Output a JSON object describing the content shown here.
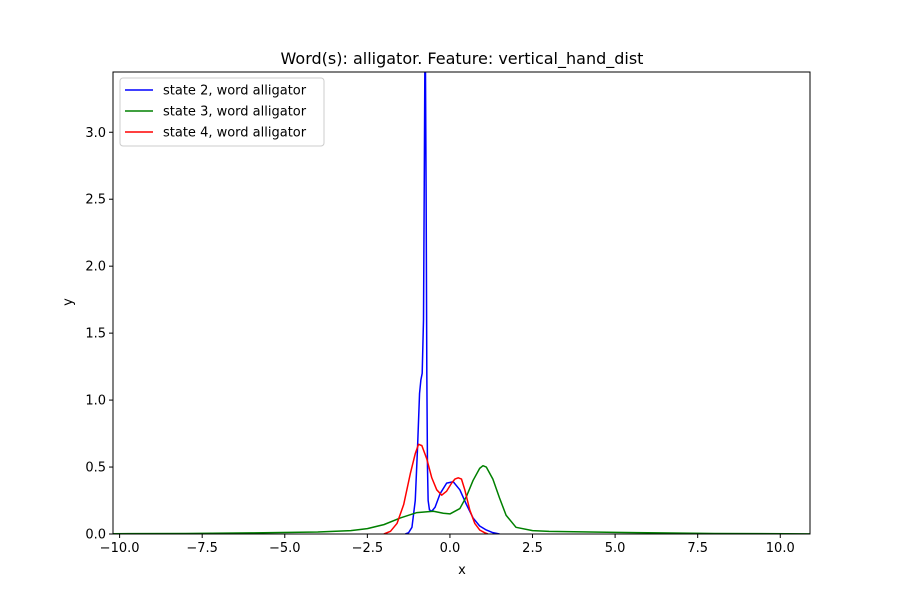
{
  "chart_data": {
    "type": "line",
    "title": "Word(s): alligator. Feature: vertical_hand_dist",
    "xlabel": "x",
    "ylabel": "y",
    "xlim": [
      -10.2,
      10.9
    ],
    "ylim": [
      0,
      3.45
    ],
    "xticks": [
      -10.0,
      -7.5,
      -5.0,
      -2.5,
      0.0,
      2.5,
      5.0,
      7.5,
      10.0
    ],
    "xtick_labels": [
      "−10.0",
      "−7.5",
      "−5.0",
      "−2.5",
      "0.0",
      "2.5",
      "5.0",
      "7.5",
      "10.0"
    ],
    "yticks": [
      0.0,
      0.5,
      1.0,
      1.5,
      2.0,
      2.5,
      3.0
    ],
    "ytick_labels": [
      "0.0",
      "0.5",
      "1.0",
      "1.5",
      "2.0",
      "2.5",
      "3.0"
    ],
    "grid": false,
    "legend_position": "top-left",
    "series": [
      {
        "name": "state 2, word alligator",
        "color": "#0000ff",
        "x": [
          -1.35,
          -1.25,
          -1.15,
          -1.05,
          -0.98,
          -0.92,
          -0.88,
          -0.84,
          -0.8,
          -0.78,
          -0.76,
          -0.74,
          -0.72,
          -0.7,
          -0.68,
          -0.66,
          -0.62,
          -0.55,
          -0.45,
          -0.3,
          -0.1,
          0.1,
          0.3,
          0.5,
          0.7,
          0.9,
          1.1,
          1.3,
          1.5
        ],
        "y": [
          0.0,
          0.01,
          0.05,
          0.25,
          0.65,
          1.05,
          1.15,
          1.2,
          1.6,
          2.5,
          3.45,
          3.45,
          2.5,
          1.2,
          0.5,
          0.25,
          0.18,
          0.17,
          0.2,
          0.3,
          0.38,
          0.39,
          0.33,
          0.22,
          0.12,
          0.06,
          0.03,
          0.01,
          0.0
        ]
      },
      {
        "name": "state 3, word alligator",
        "color": "#008000",
        "x": [
          -10.2,
          -8.0,
          -6.0,
          -4.0,
          -3.0,
          -2.5,
          -2.0,
          -1.5,
          -1.0,
          -0.5,
          -0.2,
          0.0,
          0.3,
          0.5,
          0.7,
          0.9,
          1.0,
          1.1,
          1.3,
          1.5,
          1.7,
          2.0,
          2.5,
          3.0,
          4.0,
          5.0,
          6.0,
          8.0,
          10.9
        ],
        "y": [
          0.002,
          0.004,
          0.008,
          0.015,
          0.025,
          0.04,
          0.07,
          0.12,
          0.16,
          0.17,
          0.155,
          0.15,
          0.19,
          0.28,
          0.4,
          0.49,
          0.51,
          0.5,
          0.41,
          0.27,
          0.14,
          0.05,
          0.025,
          0.02,
          0.016,
          0.012,
          0.009,
          0.004,
          0.001
        ]
      },
      {
        "name": "state 4, word alligator",
        "color": "#ff0000",
        "x": [
          -2.0,
          -1.8,
          -1.6,
          -1.4,
          -1.2,
          -1.05,
          -0.95,
          -0.85,
          -0.7,
          -0.55,
          -0.4,
          -0.25,
          -0.1,
          0.05,
          0.15,
          0.25,
          0.35,
          0.45,
          0.6,
          0.75,
          0.9,
          1.05,
          1.15
        ],
        "y": [
          0.0,
          0.02,
          0.08,
          0.22,
          0.45,
          0.6,
          0.67,
          0.66,
          0.56,
          0.42,
          0.33,
          0.29,
          0.32,
          0.38,
          0.41,
          0.42,
          0.41,
          0.33,
          0.18,
          0.08,
          0.03,
          0.01,
          0.0
        ]
      }
    ]
  }
}
